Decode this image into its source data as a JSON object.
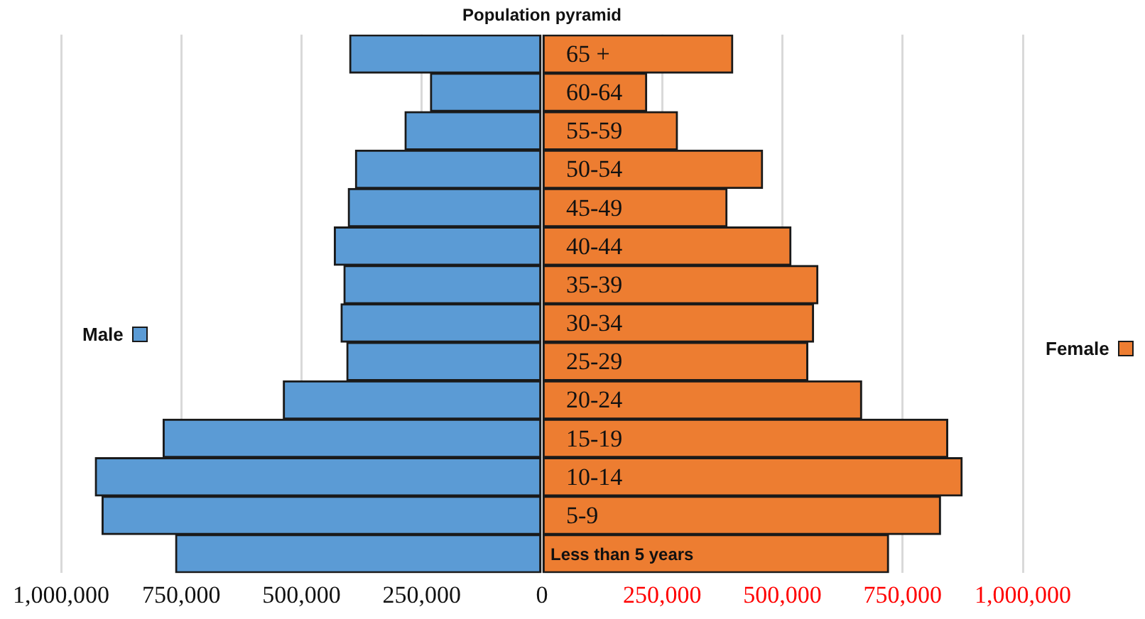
{
  "chart_data": {
    "type": "bar",
    "orientation": "horizontal",
    "title": "Population pyramid",
    "categories": [
      "65 +",
      "60-64",
      "55-59",
      "50-54",
      "45-49",
      "40-44",
      "35-39",
      "30-34",
      "25-29",
      "20-24",
      "15-19",
      "10-14",
      "5-9",
      "Less than 5 years"
    ],
    "series": [
      {
        "name": "Male",
        "color": "#5b9bd5",
        "values": [
          -400000,
          -232000,
          -285000,
          -388000,
          -403000,
          -432000,
          -412000,
          -418000,
          -406000,
          -538000,
          -788000,
          -929000,
          -915000,
          -762000
        ]
      },
      {
        "name": "Female",
        "color": "#ed7d31",
        "values": [
          397000,
          218000,
          282000,
          459000,
          385000,
          518000,
          574000,
          565000,
          553000,
          665000,
          844000,
          874000,
          829000,
          721000
        ]
      }
    ],
    "xlim": [
      -1000000,
      1000000
    ],
    "xticks": [
      {
        "value": -1000000,
        "label": "1,000,000"
      },
      {
        "value": -750000,
        "label": "750,000"
      },
      {
        "value": -500000,
        "label": "500,000"
      },
      {
        "value": -250000,
        "label": "250,000"
      },
      0,
      {
        "value": 250000,
        "label": "250,000"
      },
      {
        "value": 500000,
        "label": "500,000"
      },
      {
        "value": 750000,
        "label": "750,000"
      },
      {
        "value": 1000000,
        "label": "1,000,000"
      }
    ],
    "grid": "x",
    "legend": "right",
    "stacked": true
  }
}
